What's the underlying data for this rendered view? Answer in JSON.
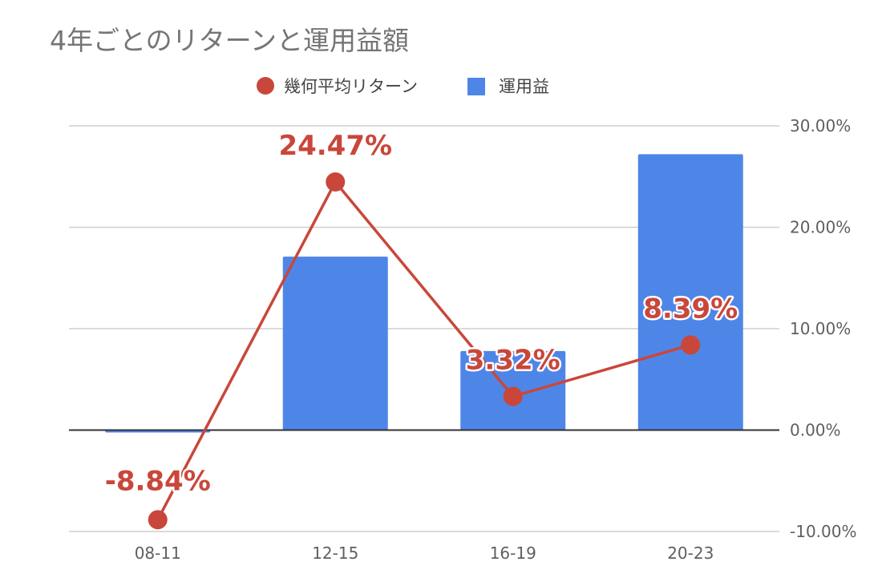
{
  "chart_data": {
    "type": "bar",
    "title": "4年ごとのリターンと運用益額",
    "categories": [
      "08-11",
      "12-15",
      "16-19",
      "20-23"
    ],
    "series": [
      {
        "name": "幾何平均リターン",
        "kind": "line",
        "color": "#c9473a",
        "values": [
          -8.84,
          24.47,
          3.32,
          8.39
        ],
        "labels": [
          "-8.84%",
          "24.47%",
          "3.32%",
          "8.39%"
        ]
      },
      {
        "name": "運用益",
        "kind": "bar",
        "color": "#4e86e8",
        "values": [
          -0.2,
          17.1,
          7.8,
          27.2
        ]
      }
    ],
    "ylim_right": [
      -10,
      30
    ],
    "ytick_labels_right": [
      "30.00%",
      "20.00%",
      "10.00%",
      "0.00%",
      "-10.00%"
    ],
    "bar_axis_note": "運用益 bars have no printed axis; values are relative estimates",
    "bar_baseline": 0,
    "legend_position": "top-center",
    "grid": true
  }
}
